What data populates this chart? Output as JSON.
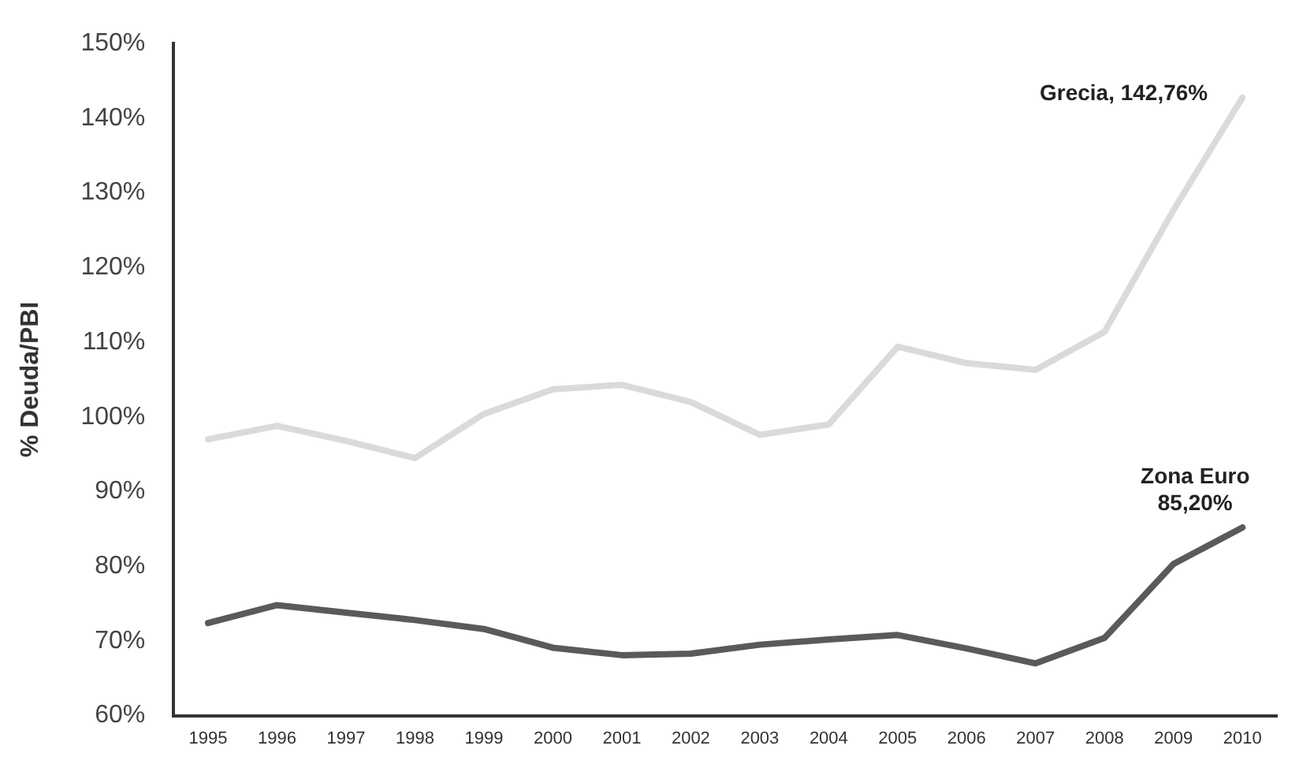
{
  "chart_data": {
    "type": "line",
    "ylabel": "% Deuda/PBI",
    "categories": [
      "1995",
      "1996",
      "1997",
      "1998",
      "1999",
      "2000",
      "2001",
      "2002",
      "2003",
      "2004",
      "2005",
      "2006",
      "2007",
      "2008",
      "2009",
      "2010"
    ],
    "series": [
      {
        "color": "#dadada",
        "values": [
          97,
          98.8,
          96.8,
          94.5,
          100.4,
          103.7,
          104.3,
          102,
          97.6,
          99,
          109.4,
          107.2,
          106.3,
          111.4,
          127.7,
          142.76
        ]
      },
      {
        "color": "#5a5a5a",
        "values": [
          72.4,
          74.8,
          73.8,
          72.8,
          71.6,
          69.1,
          68.1,
          68.3,
          69.5,
          70.2,
          70.8,
          69,
          67,
          70.4,
          80.3,
          85.2
        ]
      }
    ],
    "ylim": [
      60,
      150
    ],
    "yticks": [
      {
        "value": 60,
        "label": "60%"
      },
      {
        "value": 70,
        "label": "70%"
      },
      {
        "value": 80,
        "label": "80%"
      },
      {
        "value": 90,
        "label": "90%"
      },
      {
        "value": 100,
        "label": "100%"
      },
      {
        "value": 110,
        "label": "110%"
      },
      {
        "value": 120,
        "label": "120%"
      },
      {
        "value": 130,
        "label": "130%"
      },
      {
        "value": 140,
        "label": "140%"
      },
      {
        "value": 150,
        "label": "150%"
      }
    ],
    "grid": false,
    "legend": false,
    "marker": "none",
    "line_style": "solid",
    "annotations": [
      {
        "text": "Grecia, 142,76%",
        "x": "2010",
        "y": 142.76
      },
      {
        "text": "Zona Euro\n85,20%",
        "x": "2010",
        "y": 85.2
      }
    ]
  }
}
